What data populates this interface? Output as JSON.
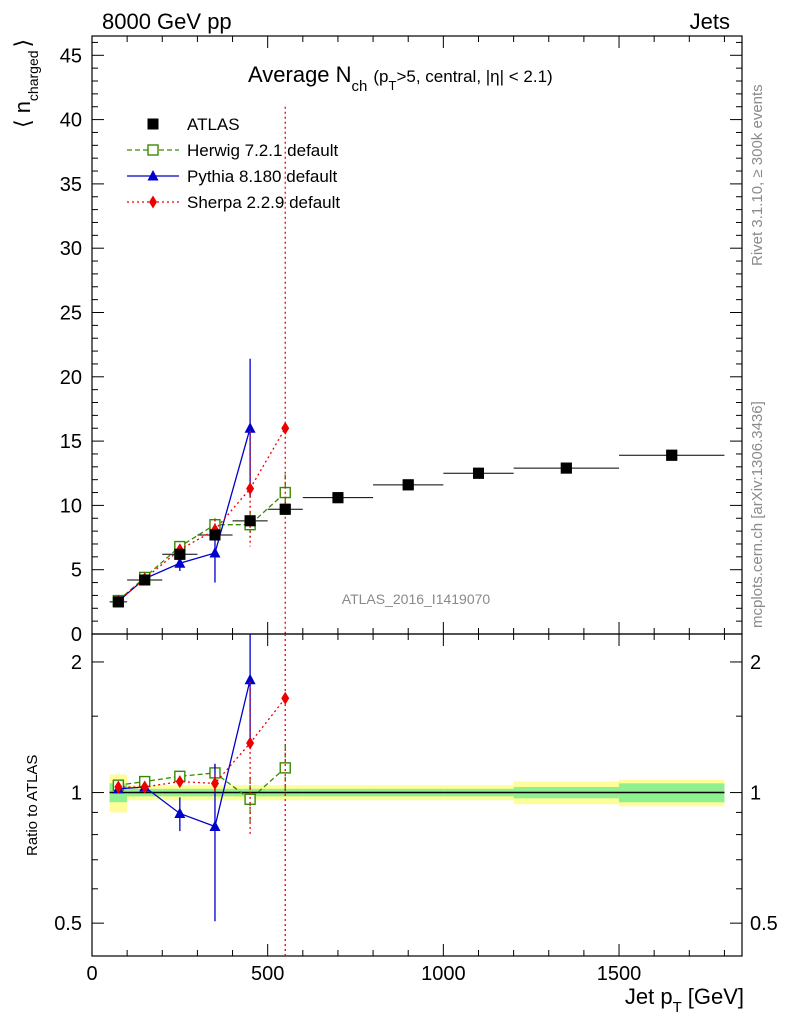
{
  "header": {
    "left": "8000 GeV pp",
    "right": "Jets"
  },
  "side_text": {
    "rivet": "Rivet 3.1.10, ≥ 300k events",
    "mcplots": "mcplots.cern.ch [arXiv:1306.3436]"
  },
  "watermark": "ATLAS_2016_I1419070",
  "colors": {
    "atlas": "#000000",
    "herwig": "#3a8a00",
    "pythia": "#0000cc",
    "sherpa": "#ee0000",
    "band_inner": "#8ef08e",
    "band_outer": "#fdfd99"
  },
  "chart_data": [
    {
      "type": "scatter",
      "panel": "main",
      "title_main": "Average N",
      "title_sub": "ch",
      "title_rest": "(p",
      "title_rest_sub": "T",
      "title_tail": ">5, central, |η| < 2.1)",
      "ylabel": "⟨ n",
      "ylabel_sub": "charged",
      "ylabel_close": "⟩",
      "xlim": [
        0,
        1850
      ],
      "ylim": [
        0,
        46.5
      ],
      "yticks": [
        0,
        5,
        10,
        15,
        20,
        25,
        30,
        35,
        40,
        45
      ],
      "grid": false,
      "legend_position": "top-left",
      "series": [
        {
          "name": "ATLAS",
          "style": "square",
          "x": [
            75,
            150,
            250,
            350,
            450,
            550,
            700,
            900,
            1100,
            1350,
            1650
          ],
          "xerr": [
            25,
            50,
            50,
            50,
            50,
            50,
            100,
            100,
            100,
            150,
            150
          ],
          "y": [
            2.5,
            4.2,
            6.2,
            7.7,
            8.8,
            9.7,
            10.6,
            11.6,
            12.5,
            12.9,
            13.9
          ]
        },
        {
          "name": "Herwig 7.2.1 default",
          "style": "open-square-dashed",
          "x": [
            75,
            150,
            250,
            350,
            450,
            550
          ],
          "y": [
            2.6,
            4.4,
            6.8,
            8.5,
            8.5,
            11.0
          ],
          "yerr": [
            0.1,
            0.2,
            0.3,
            0.5,
            1.0,
            1.4
          ]
        },
        {
          "name": "Pythia 8.180 default",
          "style": "triangle-solid",
          "x": [
            75,
            150,
            250,
            350,
            450
          ],
          "y": [
            2.55,
            4.3,
            5.5,
            6.3,
            16.0
          ],
          "yerr": [
            0.1,
            0.2,
            0.6,
            2.3,
            5.4
          ]
        },
        {
          "name": "Sherpa 2.2.9 default",
          "style": "diamond-dotted",
          "x": [
            75,
            150,
            250,
            350,
            450,
            550
          ],
          "y": [
            2.55,
            4.3,
            6.55,
            8.1,
            11.3,
            16.0
          ],
          "yerr": [
            0.1,
            0.2,
            0.4,
            0.8,
            4.5,
            25.0
          ]
        }
      ]
    },
    {
      "type": "scatter",
      "panel": "ratio",
      "ylabel": "Ratio to ATLAS",
      "xlabel": "Jet p",
      "xlabel_sub": "T",
      "xlabel_unit": "[GeV]",
      "xlim": [
        0,
        1850
      ],
      "ylim": [
        0.42,
        2.32
      ],
      "yscale": "log",
      "xticks": [
        0,
        500,
        1000,
        1500
      ],
      "yticks": [
        0.5,
        1,
        2
      ],
      "bands": {
        "x_edges": [
          50,
          100,
          200,
          300,
          400,
          500,
          600,
          800,
          1000,
          1200,
          1500,
          1800
        ],
        "inner": [
          0.05,
          0.02,
          0.02,
          0.02,
          0.02,
          0.02,
          0.02,
          0.02,
          0.02,
          0.03,
          0.05
        ],
        "outer": [
          0.1,
          0.04,
          0.04,
          0.04,
          0.04,
          0.04,
          0.04,
          0.04,
          0.04,
          0.06,
          0.07
        ]
      },
      "series": [
        {
          "name": "Herwig 7.2.1 default",
          "x": [
            75,
            150,
            250,
            350,
            450,
            550
          ],
          "y": [
            1.04,
            1.06,
            1.09,
            1.11,
            0.965,
            1.14
          ],
          "yerr": [
            0.01,
            0.02,
            0.03,
            0.05,
            0.12,
            0.15
          ]
        },
        {
          "name": "Pythia 8.180 default",
          "x": [
            75,
            150,
            250,
            350,
            450
          ],
          "y": [
            1.02,
            1.03,
            0.895,
            0.835,
            1.82
          ],
          "yerr": [
            0.01,
            0.02,
            0.08,
            0.33,
            0.5
          ]
        },
        {
          "name": "Sherpa 2.2.9 default",
          "x": [
            75,
            150,
            250,
            350,
            450,
            550
          ],
          "y": [
            1.03,
            1.03,
            1.06,
            1.05,
            1.3,
            1.65
          ],
          "yerr": [
            0.01,
            0.02,
            0.03,
            0.05,
            0.5,
            2.5
          ]
        }
      ]
    }
  ]
}
